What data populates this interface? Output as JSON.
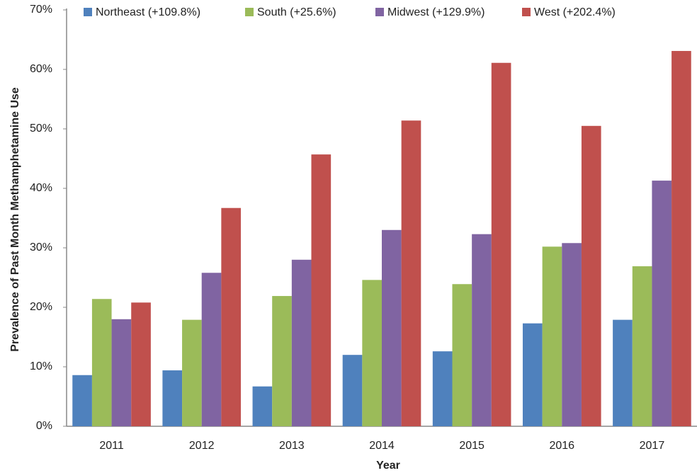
{
  "chart_data": {
    "type": "bar",
    "y_label": "Prevalence of Past Month Methamphetamine Use",
    "x_label": "Year",
    "categories": [
      "2011",
      "2012",
      "2013",
      "2014",
      "2015",
      "2016",
      "2017"
    ],
    "series": [
      {
        "name": "Northeast (+109.8%)",
        "color": "#4f81bd",
        "values": [
          8.6,
          9.4,
          6.7,
          12.0,
          12.6,
          17.3,
          17.9
        ]
      },
      {
        "name": "South (+25.6%)",
        "color": "#9bbb59",
        "values": [
          21.4,
          17.9,
          21.9,
          24.6,
          23.9,
          30.2,
          26.9
        ]
      },
      {
        "name": "Midwest (+129.9%)",
        "color": "#8064a2",
        "values": [
          18.0,
          25.8,
          28.0,
          33.0,
          32.3,
          30.8,
          41.3
        ]
      },
      {
        "name": "West (+202.4%)",
        "color": "#c0504d",
        "values": [
          20.8,
          36.7,
          45.7,
          51.4,
          61.1,
          50.5,
          63.1
        ]
      }
    ],
    "ylim": [
      0,
      70
    ],
    "yticks": [
      {
        "value": 0,
        "label": "0%"
      },
      {
        "value": 10,
        "label": "10%"
      },
      {
        "value": 20,
        "label": "20%"
      },
      {
        "value": 30,
        "label": "30%"
      },
      {
        "value": 40,
        "label": "40%"
      },
      {
        "value": 50,
        "label": "50%"
      },
      {
        "value": 60,
        "label": "60%"
      },
      {
        "value": 70,
        "label": "70%"
      }
    ],
    "legend": "top",
    "grid": false
  }
}
